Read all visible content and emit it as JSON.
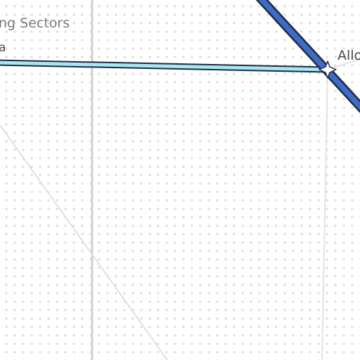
{
  "map": {
    "background_color": "#ffffff",
    "dot_color": "#dcdcd2",
    "labels": {
      "area": "ng Sectors",
      "road": "a",
      "station": "Allo"
    },
    "colors": {
      "blue_line": "#3f6bc4",
      "cyan_line": "#a8e6f2",
      "outline": "#1c2a44",
      "grey_street": "#cfcfcf",
      "light_street": "#e2e2e2"
    },
    "icons": {
      "station_marker": "station-star-icon"
    }
  }
}
